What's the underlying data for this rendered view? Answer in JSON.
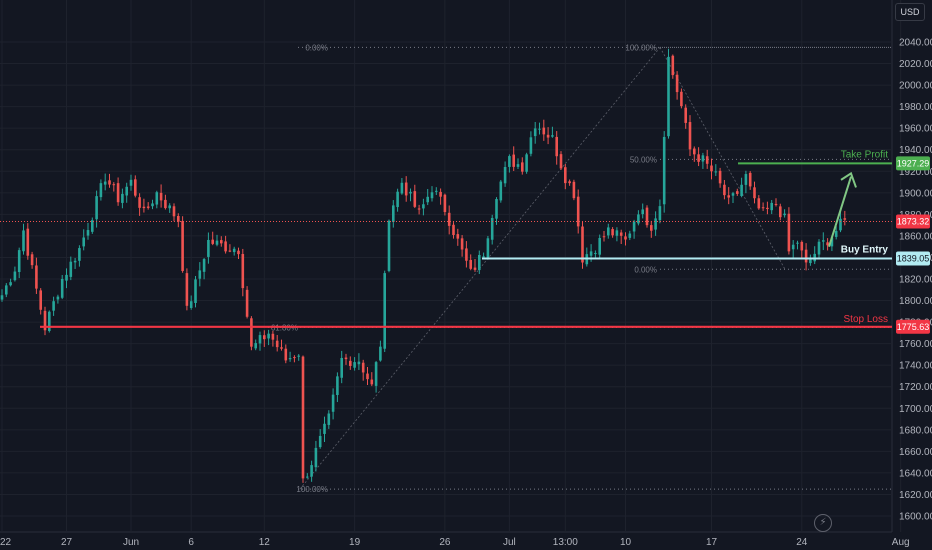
{
  "currency": "USD",
  "bolt_icon": "⚡",
  "chart_data": {
    "type": "candlestick",
    "title": "",
    "ylim": [
      1592,
      2053
    ],
    "y_ticks": [
      1600,
      1620,
      1640,
      1660,
      1680,
      1700,
      1720,
      1740,
      1760,
      1780,
      1800,
      1820,
      1840,
      1860,
      1880,
      1900,
      1920,
      1940,
      1960,
      1980,
      2000,
      2020,
      2040
    ],
    "x_ticks": [
      "22",
      "27",
      "Jun",
      "6",
      "12",
      "19",
      "26",
      "Jul",
      "13:00",
      "10",
      "17",
      "24",
      "Aug"
    ],
    "x_index_range": [
      0,
      196
    ],
    "x_tick_index": [
      0,
      15,
      30,
      44,
      61,
      82,
      103,
      118,
      131,
      145,
      165,
      186,
      209
    ],
    "candle_count": 196,
    "anchors": [
      [
        0,
        1805
      ],
      [
        3,
        1830
      ],
      [
        5,
        1865
      ],
      [
        8,
        1810
      ],
      [
        10,
        1775
      ],
      [
        14,
        1820
      ],
      [
        18,
        1848
      ],
      [
        21,
        1880
      ],
      [
        24,
        1915
      ],
      [
        27,
        1895
      ],
      [
        30,
        1910
      ],
      [
        33,
        1880
      ],
      [
        36,
        1900
      ],
      [
        39,
        1885
      ],
      [
        41,
        1875
      ],
      [
        43,
        1790
      ],
      [
        45,
        1815
      ],
      [
        48,
        1855
      ],
      [
        52,
        1850
      ],
      [
        55,
        1848
      ],
      [
        58,
        1755
      ],
      [
        62,
        1770
      ],
      [
        66,
        1745
      ],
      [
        69,
        1752
      ],
      [
        70,
        1632
      ],
      [
        72,
        1650
      ],
      [
        76,
        1690
      ],
      [
        79,
        1745
      ],
      [
        83,
        1745
      ],
      [
        86,
        1720
      ],
      [
        88,
        1760
      ],
      [
        90,
        1880
      ],
      [
        93,
        1910
      ],
      [
        97,
        1880
      ],
      [
        100,
        1905
      ],
      [
        103,
        1885
      ],
      [
        106,
        1855
      ],
      [
        109,
        1825
      ],
      [
        112,
        1845
      ],
      [
        115,
        1900
      ],
      [
        118,
        1930
      ],
      [
        121,
        1925
      ],
      [
        124,
        1965
      ],
      [
        128,
        1950
      ],
      [
        131,
        1915
      ],
      [
        133,
        1900
      ],
      [
        135,
        1840
      ],
      [
        138,
        1850
      ],
      [
        141,
        1865
      ],
      [
        145,
        1855
      ],
      [
        148,
        1885
      ],
      [
        151,
        1870
      ],
      [
        153,
        1890
      ],
      [
        155,
        2025
      ],
      [
        158,
        1980
      ],
      [
        160,
        1940
      ],
      [
        163,
        1930
      ],
      [
        166,
        1915
      ],
      [
        169,
        1890
      ],
      [
        171,
        1900
      ],
      [
        173,
        1915
      ],
      [
        175,
        1890
      ],
      [
        177,
        1880
      ],
      [
        180,
        1890
      ],
      [
        182,
        1875
      ],
      [
        183,
        1845
      ],
      [
        185,
        1855
      ],
      [
        187,
        1832
      ],
      [
        190,
        1850
      ],
      [
        193,
        1860
      ],
      [
        196,
        1875
      ]
    ],
    "current_price": "1873.32",
    "take_profit": {
      "label": "Take Profit",
      "price": "1927.29",
      "value": 1927.29
    },
    "buy_entry": {
      "label": "Buy Entry",
      "price": "1839.05",
      "value": 1839.05
    },
    "stop_loss": {
      "label": "Stop Loss",
      "price": "1775.63",
      "value": 1775.63
    },
    "fib_left": {
      "labels": [
        "0.00%",
        "61.80%",
        "100.00%"
      ],
      "values": [
        2035,
        1775,
        1625
      ]
    },
    "fib_right": {
      "labels": [
        "100.00%",
        "50.00%",
        "0.00%"
      ],
      "values": [
        2035,
        1931,
        1829
      ]
    },
    "colors": {
      "up": "#26a69a",
      "down": "#ef5350",
      "entry": "#b2ebf2",
      "tp": "#4caf50",
      "arrow": "#81c784"
    }
  }
}
